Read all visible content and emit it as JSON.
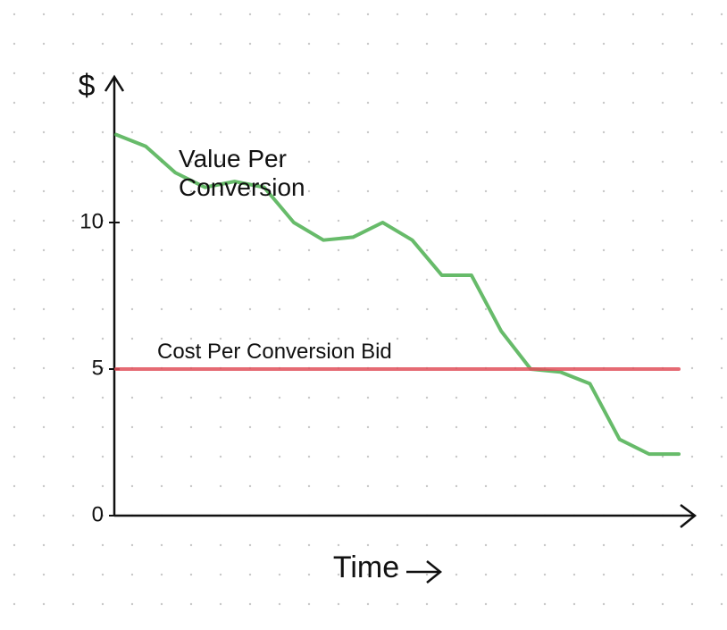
{
  "chart_data": {
    "type": "line",
    "y_label": "$",
    "x_label": "Time",
    "categories": [
      null,
      null,
      null,
      null,
      null,
      null,
      null,
      null,
      null,
      null,
      null,
      null,
      null,
      null,
      null,
      null,
      null,
      null,
      null,
      null
    ],
    "series": [
      {
        "name": "Value Per Conversion",
        "color": "#4caf50",
        "values": [
          13.0,
          12.6,
          11.7,
          11.2,
          11.4,
          11.2,
          10.0,
          9.4,
          9.5,
          10.0,
          9.4,
          8.2,
          8.2,
          6.3,
          5.0,
          4.9,
          4.5,
          2.6,
          2.1,
          2.1
        ]
      },
      {
        "name": "Cost Per Conversion Bid",
        "color": "#e0505a",
        "values": [
          5,
          5,
          5,
          5,
          5,
          5,
          5,
          5,
          5,
          5,
          5,
          5,
          5,
          5,
          5,
          5,
          5,
          5,
          5,
          5
        ]
      }
    ],
    "ylim": [
      0,
      15
    ],
    "yticks": [
      0,
      5,
      10
    ]
  }
}
